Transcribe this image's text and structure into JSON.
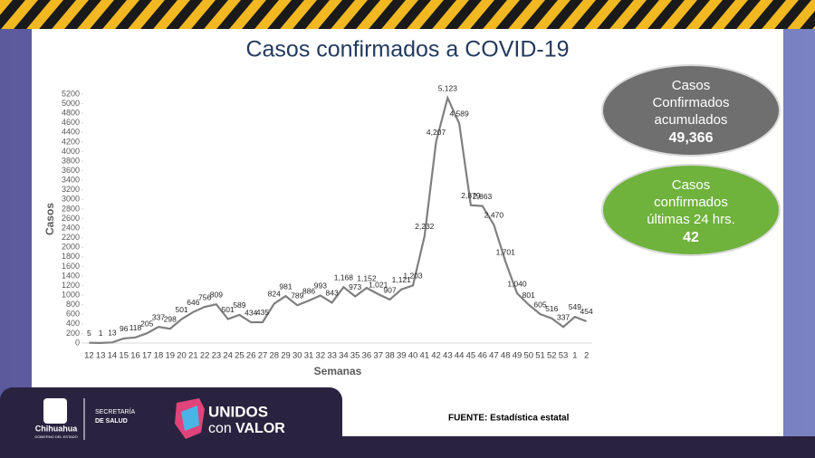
{
  "chart_data": {
    "type": "line",
    "title": "Casos confirmados a COVID-19",
    "y_label": "Casos",
    "x_label": "Semanas",
    "categories": [
      "12",
      "13",
      "14",
      "15",
      "16",
      "17",
      "18",
      "19",
      "20",
      "21",
      "22",
      "23",
      "24",
      "25",
      "26",
      "27",
      "28",
      "29",
      "30",
      "31",
      "32",
      "33",
      "34",
      "35",
      "36",
      "37",
      "38",
      "39",
      "40",
      "41",
      "42",
      "43",
      "44",
      "45",
      "46",
      "47",
      "48",
      "49",
      "50",
      "51",
      "52",
      "53",
      "1",
      "2"
    ],
    "values": [
      5,
      1,
      13,
      96,
      118,
      205,
      337,
      298,
      501,
      646,
      756,
      809,
      501,
      589,
      434,
      435,
      824,
      981,
      789,
      886,
      993,
      843,
      1168,
      973,
      1152,
      1021,
      907,
      1121,
      1203,
      2232,
      4207,
      5123,
      4589,
      2879,
      2863,
      2470,
      1701,
      1040,
      801,
      605,
      516,
      337,
      549,
      454
    ],
    "value_labels": [
      "5",
      "1",
      "13",
      "96",
      "118",
      "205",
      "337",
      "298",
      "501",
      "646",
      "756",
      "809",
      "501",
      "589",
      "434",
      "435",
      "824",
      "981",
      "789",
      "886",
      "993",
      "843",
      "1,168",
      "973",
      "1,152",
      "1,021",
      "907",
      "1,121",
      "1,203",
      "2,232",
      "4,207",
      "5,123",
      "4,589",
      "2,879",
      "2,863",
      "2,470",
      "1,701",
      "1,040",
      "801",
      "605",
      "516",
      "337",
      "549",
      "454"
    ],
    "color": "#7f7f7f",
    "ylim": [
      0,
      5200
    ],
    "yticks": [
      0,
      200,
      400,
      600,
      800,
      1000,
      1200,
      1400,
      1600,
      1800,
      2000,
      2200,
      2400,
      2600,
      2800,
      3000,
      3200,
      3400,
      3600,
      3800,
      4000,
      4200,
      4400,
      4600,
      4800,
      5000,
      5200
    ]
  },
  "panels": [
    {
      "lines": [
        "Casos",
        "Confirmados",
        "acumulados"
      ],
      "value": "49,366"
    },
    {
      "lines": [
        "Casos",
        "confirmados",
        "últimas 24 hrs."
      ],
      "value": "42"
    }
  ],
  "footer": {
    "source": "FUENTE: Estadística estatal",
    "state": "Chihuahua",
    "state_sub": "GOBIERNO DEL ESTADO",
    "secretary": [
      "SECRETARÍA",
      "DE SALUD"
    ],
    "brand_top": "UNIDOS",
    "brand_con": "con",
    "brand_valor": "VALOR"
  }
}
